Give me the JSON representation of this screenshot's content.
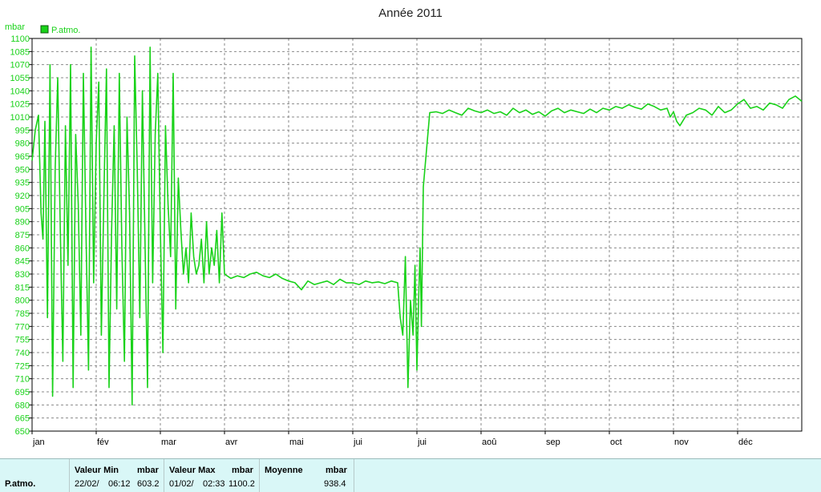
{
  "chart_data": {
    "type": "line",
    "title": "Année 2011",
    "ylabel": "mbar",
    "xlabel": "",
    "ylim": [
      650,
      1100
    ],
    "yticks": [
      650,
      665,
      680,
      695,
      710,
      725,
      740,
      755,
      770,
      785,
      800,
      815,
      830,
      845,
      860,
      875,
      890,
      905,
      920,
      935,
      950,
      965,
      980,
      995,
      1010,
      1025,
      1040,
      1055,
      1070,
      1085,
      1100
    ],
    "xticks": [
      "jan",
      "fév",
      "mar",
      "avr",
      "mai",
      "jui",
      "jui",
      "aoû",
      "sep",
      "oct",
      "nov",
      "déc"
    ],
    "xlim": [
      0,
      12
    ],
    "grid": true,
    "legend_position": "top-left",
    "series": [
      {
        "name": "P.atmo.",
        "color": "#19d219",
        "x": [
          0.0,
          0.05,
          0.1,
          0.14,
          0.17,
          0.2,
          0.24,
          0.28,
          0.32,
          0.36,
          0.4,
          0.44,
          0.48,
          0.52,
          0.56,
          0.6,
          0.64,
          0.68,
          0.72,
          0.76,
          0.8,
          0.84,
          0.88,
          0.92,
          0.96,
          1.0,
          1.04,
          1.08,
          1.12,
          1.16,
          1.2,
          1.24,
          1.28,
          1.32,
          1.36,
          1.4,
          1.44,
          1.48,
          1.52,
          1.56,
          1.6,
          1.64,
          1.68,
          1.72,
          1.76,
          1.8,
          1.84,
          1.88,
          1.92,
          1.96,
          2.0,
          2.04,
          2.08,
          2.12,
          2.16,
          2.2,
          2.24,
          2.28,
          2.32,
          2.36,
          2.4,
          2.44,
          2.48,
          2.52,
          2.56,
          2.6,
          2.64,
          2.68,
          2.72,
          2.76,
          2.8,
          2.84,
          2.88,
          2.92,
          2.96,
          3.0,
          3.1,
          3.2,
          3.3,
          3.4,
          3.5,
          3.6,
          3.7,
          3.8,
          3.9,
          4.0,
          4.1,
          4.2,
          4.3,
          4.4,
          4.5,
          4.6,
          4.7,
          4.8,
          4.9,
          5.0,
          5.1,
          5.2,
          5.3,
          5.4,
          5.5,
          5.6,
          5.7,
          5.74,
          5.78,
          5.82,
          5.86,
          5.9,
          5.94,
          5.97,
          6.0,
          6.03,
          6.05,
          6.07,
          6.1,
          6.2,
          6.3,
          6.4,
          6.5,
          6.6,
          6.7,
          6.8,
          6.9,
          7.0,
          7.1,
          7.2,
          7.3,
          7.4,
          7.5,
          7.6,
          7.7,
          7.8,
          7.9,
          8.0,
          8.1,
          8.2,
          8.3,
          8.4,
          8.5,
          8.6,
          8.7,
          8.8,
          8.9,
          9.0,
          9.1,
          9.2,
          9.3,
          9.4,
          9.5,
          9.6,
          9.7,
          9.8,
          9.9,
          9.95,
          10.0,
          10.05,
          10.1,
          10.2,
          10.3,
          10.4,
          10.5,
          10.6,
          10.7,
          10.8,
          10.9,
          11.0,
          11.1,
          11.2,
          11.3,
          11.4,
          11.5,
          11.6,
          11.7,
          11.8,
          11.9,
          12.0
        ],
        "values": [
          960,
          995,
          1012,
          900,
          870,
          1005,
          780,
          1070,
          690,
          950,
          1055,
          880,
          730,
          1000,
          840,
          1070,
          700,
          990,
          910,
          760,
          1060,
          880,
          720,
          1090,
          820,
          980,
          1050,
          760,
          920,
          1065,
          700,
          880,
          1000,
          790,
          1060,
          860,
          730,
          1010,
          900,
          680,
          1080,
          950,
          780,
          1040,
          870,
          700,
          1090,
          820,
          990,
          1060,
          880,
          740,
          1000,
          910,
          850,
          1060,
          790,
          940,
          880,
          830,
          860,
          820,
          900,
          850,
          830,
          840,
          870,
          820,
          890,
          830,
          860,
          840,
          880,
          820,
          900,
          830,
          825,
          828,
          826,
          830,
          832,
          828,
          826,
          830,
          825,
          822,
          820,
          812,
          822,
          818,
          820,
          822,
          818,
          824,
          820,
          820,
          818,
          822,
          820,
          821,
          819,
          822,
          820,
          780,
          760,
          850,
          700,
          800,
          760,
          840,
          720,
          810,
          860,
          770,
          930,
          1015,
          1016,
          1014,
          1018,
          1015,
          1012,
          1020,
          1017,
          1015,
          1018,
          1014,
          1016,
          1012,
          1020,
          1015,
          1018,
          1013,
          1016,
          1011,
          1017,
          1020,
          1015,
          1018,
          1016,
          1014,
          1019,
          1015,
          1020,
          1018,
          1022,
          1020,
          1024,
          1021,
          1019,
          1025,
          1022,
          1018,
          1020,
          1010,
          1016,
          1005,
          1000,
          1012,
          1015,
          1020,
          1018,
          1012,
          1022,
          1015,
          1018,
          1025,
          1030,
          1020,
          1022,
          1018,
          1026,
          1024,
          1020,
          1030,
          1034,
          1028
        ]
      }
    ]
  },
  "stats": {
    "series_label": "P.atmo.",
    "min": {
      "header": "Valeur Min",
      "unit": "mbar",
      "date": "22/02/",
      "time": "06:12",
      "value": "603.2"
    },
    "max": {
      "header": "Valeur Max",
      "unit": "mbar",
      "date": "01/02/",
      "time": "02:33",
      "value": "1100.2"
    },
    "avg": {
      "header": "Moyenne",
      "unit": "mbar",
      "value": "938.4"
    }
  }
}
